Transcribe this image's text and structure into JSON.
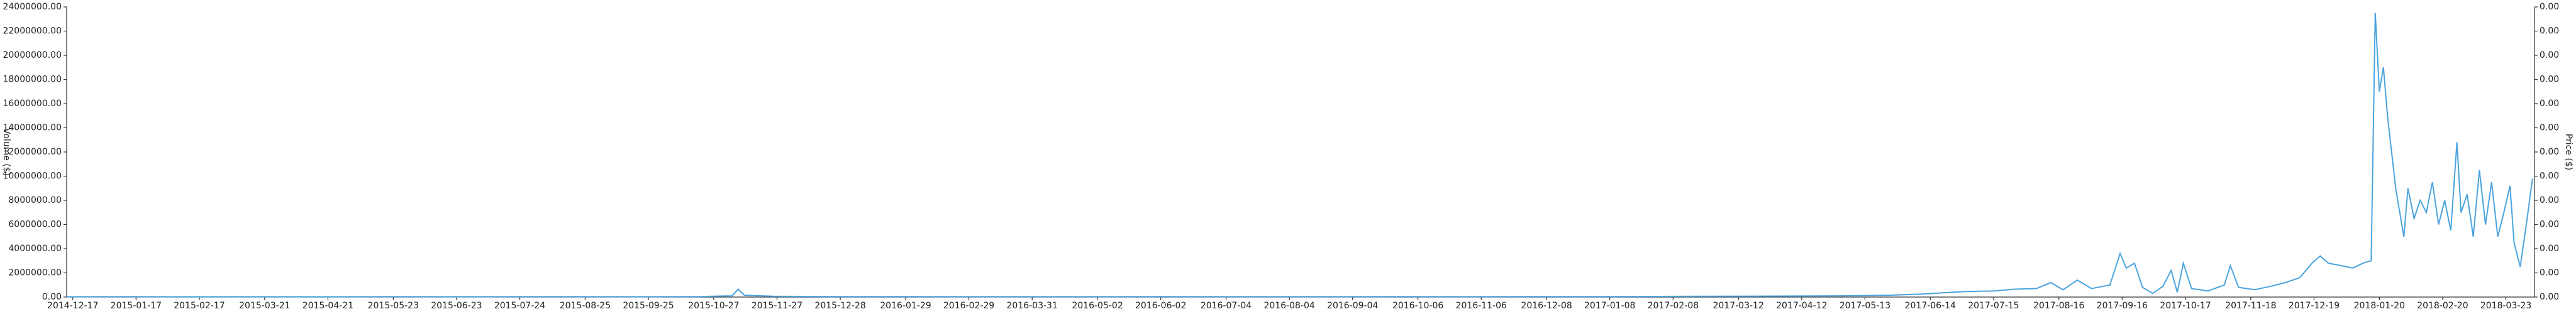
{
  "chart_data": {
    "type": "line",
    "ylabel": "Volume ($)",
    "y2label": "Price ($)",
    "color": "#4aa3df",
    "x": [
      "2014-12-14",
      "2015-01-15",
      "2015-02-15",
      "2015-03-20",
      "2015-04-20",
      "2015-05-20",
      "2015-06-20",
      "2015-07-20",
      "2015-08-20",
      "2015-09-20",
      "2015-10-20",
      "2015-11-05",
      "2015-11-08",
      "2015-11-11",
      "2015-11-25",
      "2015-12-28",
      "2016-02-01",
      "2016-03-01",
      "2016-04-01",
      "2016-05-01",
      "2016-06-01",
      "2016-07-01",
      "2016-08-01",
      "2016-09-01",
      "2016-10-01",
      "2016-11-01",
      "2016-12-01",
      "2017-01-01",
      "2017-02-01",
      "2017-03-01",
      "2017-04-01",
      "2017-05-01",
      "2017-05-25",
      "2017-06-10",
      "2017-06-20",
      "2017-07-01",
      "2017-07-15",
      "2017-07-25",
      "2017-08-05",
      "2017-08-12",
      "2017-08-18",
      "2017-08-25",
      "2017-09-01",
      "2017-09-10",
      "2017-09-15",
      "2017-09-18",
      "2017-09-22",
      "2017-09-26",
      "2017-10-01",
      "2017-10-06",
      "2017-10-10",
      "2017-10-13",
      "2017-10-16",
      "2017-10-20",
      "2017-10-28",
      "2017-11-05",
      "2017-11-08",
      "2017-11-12",
      "2017-11-20",
      "2017-11-28",
      "2017-12-05",
      "2017-12-12",
      "2017-12-18",
      "2017-12-22",
      "2017-12-26",
      "2018-01-01",
      "2018-01-07",
      "2018-01-12",
      "2018-01-16",
      "2018-01-18",
      "2018-01-20",
      "2018-01-22",
      "2018-01-24",
      "2018-01-28",
      "2018-02-01",
      "2018-02-03",
      "2018-02-06",
      "2018-02-09",
      "2018-02-12",
      "2018-02-15",
      "2018-02-18",
      "2018-02-21",
      "2018-02-24",
      "2018-02-27",
      "2018-03-01",
      "2018-03-04",
      "2018-03-07",
      "2018-03-10",
      "2018-03-13",
      "2018-03-16",
      "2018-03-19",
      "2018-03-22",
      "2018-03-25",
      "2018-03-27",
      "2018-03-30",
      "2018-04-02",
      "2018-04-05"
    ],
    "values": [
      20000,
      30000,
      20000,
      25000,
      20000,
      30000,
      25000,
      30000,
      30000,
      25000,
      40000,
      100000,
      650000,
      150000,
      60000,
      40000,
      35000,
      30000,
      30000,
      30000,
      35000,
      30000,
      30000,
      30000,
      35000,
      30000,
      40000,
      40000,
      50000,
      60000,
      80000,
      100000,
      150000,
      250000,
      350000,
      450000,
      500000,
      650000,
      700000,
      1200000,
      600000,
      1400000,
      700000,
      1000000,
      3600000,
      2400000,
      2800000,
      800000,
      300000,
      900000,
      2200000,
      400000,
      2800000,
      700000,
      500000,
      1000000,
      2600000,
      800000,
      600000,
      900000,
      1200000,
      1600000,
      2800000,
      3400000,
      2800000,
      2600000,
      2400000,
      2800000,
      3000000,
      23500000,
      17000000,
      19000000,
      15000000,
      9000000,
      5000000,
      9000000,
      6500000,
      8000000,
      7000000,
      9500000,
      6000000,
      8000000,
      5500000,
      12800000,
      7000000,
      8500000,
      5000000,
      10500000,
      6000000,
      9500000,
      5000000,
      7000000,
      9200000,
      4500000,
      2500000,
      6000000,
      9800000
    ],
    "xlim": [
      "2014-12-14",
      "2018-04-06"
    ],
    "xticks": [
      "2014-12-17",
      "2015-01-17",
      "2015-02-17",
      "2015-03-21",
      "2015-04-21",
      "2015-05-23",
      "2015-06-23",
      "2015-07-24",
      "2015-08-25",
      "2015-09-25",
      "2015-10-27",
      "2015-11-27",
      "2015-12-28",
      "2016-01-29",
      "2016-02-29",
      "2016-03-31",
      "2016-05-02",
      "2016-06-02",
      "2016-07-04",
      "2016-08-04",
      "2016-09-04",
      "2016-10-06",
      "2016-11-06",
      "2016-12-08",
      "2017-01-08",
      "2017-02-08",
      "2017-03-12",
      "2017-04-12",
      "2017-05-13",
      "2017-06-14",
      "2017-07-15",
      "2017-08-16",
      "2017-09-16",
      "2017-10-17",
      "2017-11-18",
      "2017-12-19",
      "2018-01-20",
      "2018-02-20",
      "2018-03-23"
    ],
    "ylim": [
      0,
      24000000
    ],
    "yticks": [
      {
        "value": 0,
        "label": "0.00"
      },
      {
        "value": 2000000,
        "label": "2000000.00"
      },
      {
        "value": 4000000,
        "label": "4000000.00"
      },
      {
        "value": 6000000,
        "label": "6000000.00"
      },
      {
        "value": 8000000,
        "label": "8000000.00"
      },
      {
        "value": 10000000,
        "label": "10000000.00"
      },
      {
        "value": 12000000,
        "label": "12000000.00"
      },
      {
        "value": 14000000,
        "label": "14000000.00"
      },
      {
        "value": 16000000,
        "label": "16000000.00"
      },
      {
        "value": 18000000,
        "label": "18000000.00"
      },
      {
        "value": 20000000,
        "label": "20000000.00"
      },
      {
        "value": 22000000,
        "label": "22000000.00"
      },
      {
        "value": 24000000,
        "label": "24000000.00"
      }
    ],
    "y2lim": [
      0,
      0.0024
    ],
    "y2ticks": [
      {
        "value": 0,
        "label": "0.00"
      },
      {
        "value": 0.0002,
        "label": "0.00"
      },
      {
        "value": 0.0004,
        "label": "0.00"
      },
      {
        "value": 0.0006,
        "label": "0.00"
      },
      {
        "value": 0.0008,
        "label": "0.00"
      },
      {
        "value": 0.001,
        "label": "0.00"
      },
      {
        "value": 0.0012,
        "label": "0.00"
      },
      {
        "value": 0.0014,
        "label": "0.00"
      },
      {
        "value": 0.0016,
        "label": "0.00"
      },
      {
        "value": 0.0018,
        "label": "0.00"
      },
      {
        "value": 0.002,
        "label": "0.00"
      },
      {
        "value": 0.0022,
        "label": "0.00"
      },
      {
        "value": 0.0024,
        "label": "0.00"
      }
    ]
  }
}
